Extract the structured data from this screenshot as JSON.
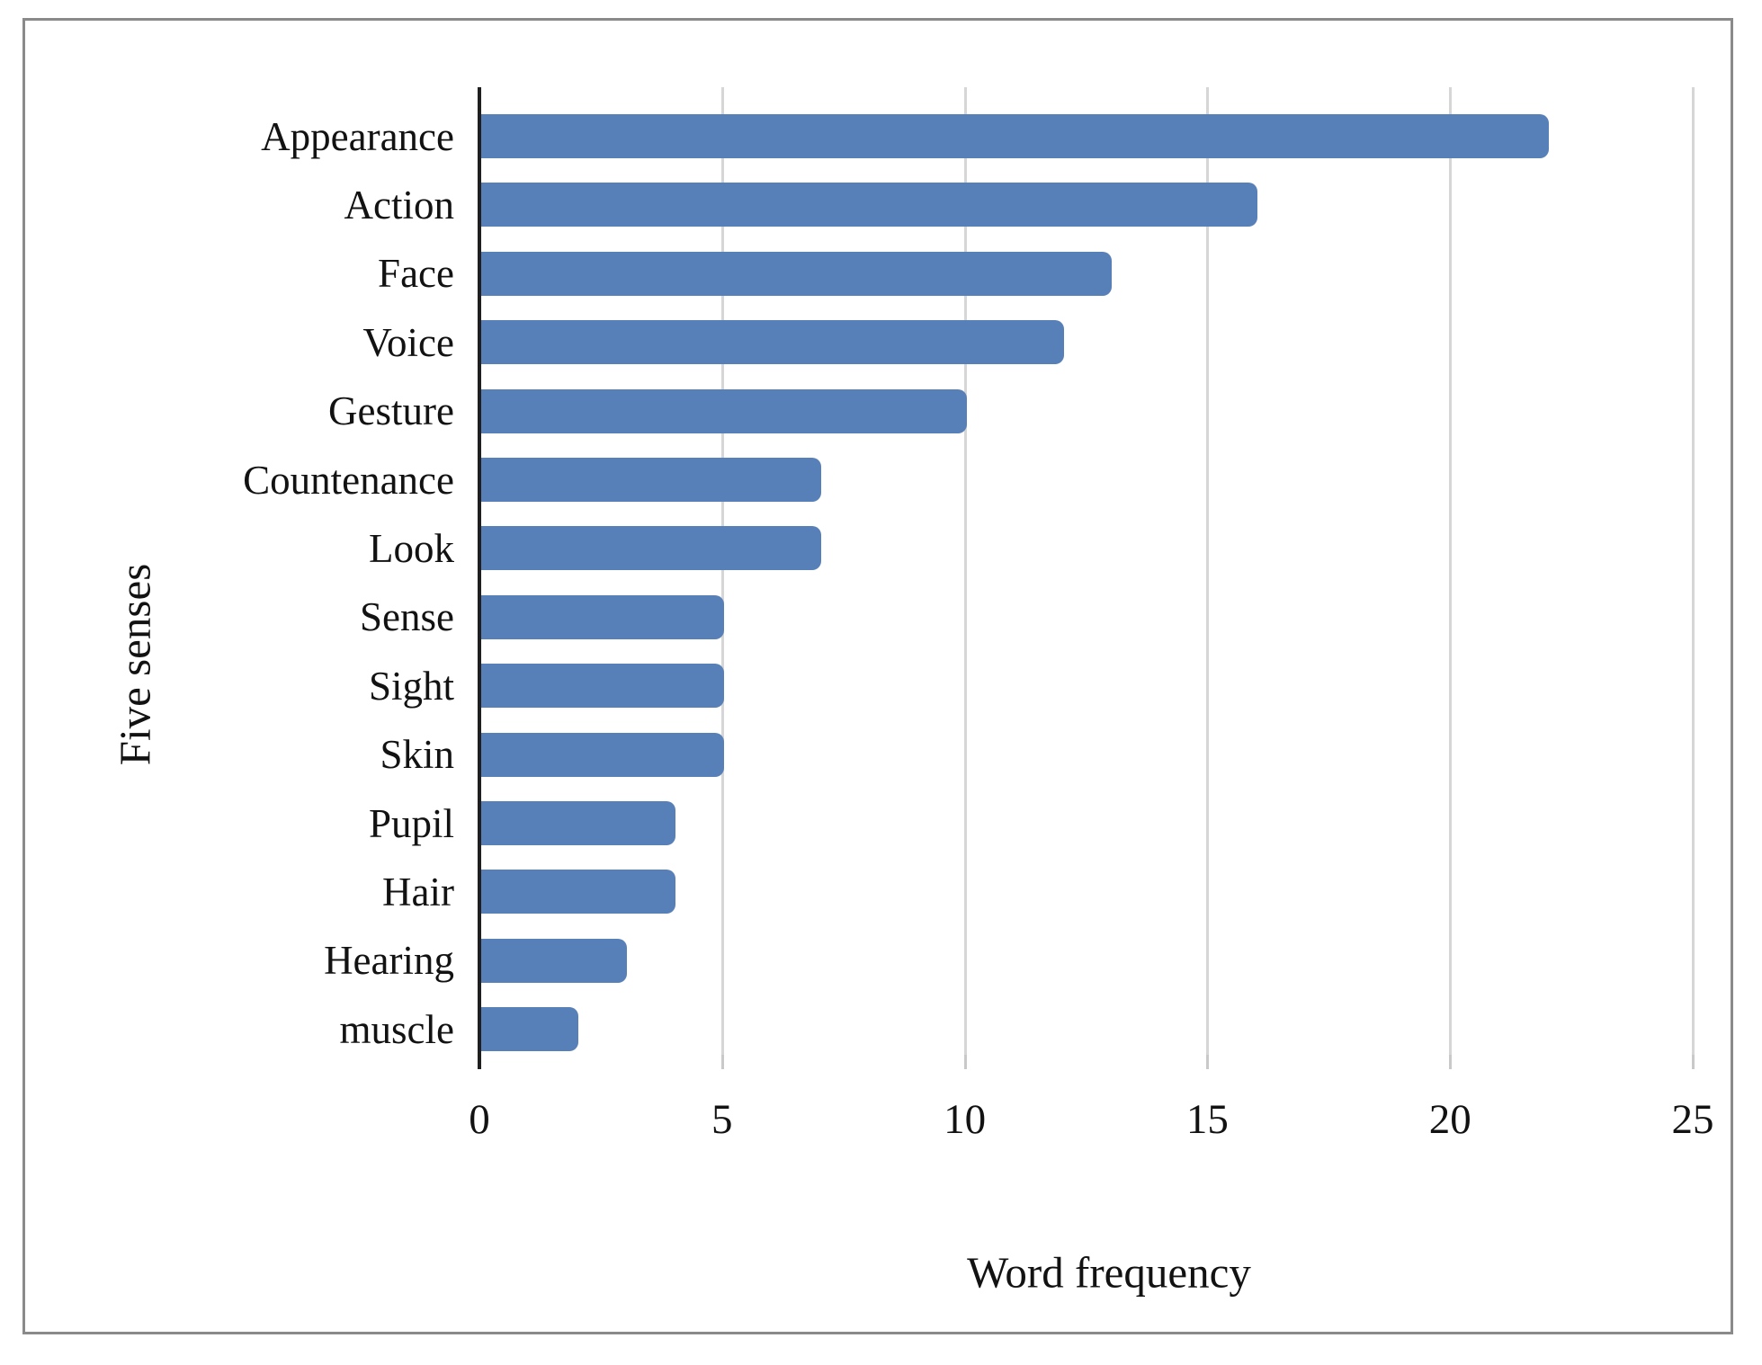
{
  "figure": {
    "background": "#ffffff",
    "border_color": "#8a8a8a"
  },
  "chart_data": {
    "type": "bar",
    "orientation": "horizontal",
    "title": "",
    "xlabel": "Word frequency",
    "ylabel": "Five senses",
    "categories": [
      "Appearance",
      "Action",
      "Face",
      "Voice",
      "Gesture",
      "Countenance",
      "Look",
      "Sense",
      "Sight",
      "Skin",
      "Pupil",
      "Hair",
      "Hearing",
      "muscle"
    ],
    "values": [
      22,
      16,
      13,
      12,
      10,
      7,
      7,
      5,
      5,
      5,
      4,
      4,
      3,
      2
    ],
    "xlim": [
      0,
      25
    ],
    "xticks": [
      0,
      5,
      10,
      15,
      20,
      25
    ],
    "grid": "vertical-only",
    "legend_position": "none",
    "bar_color": "#5880b8",
    "gridline_color": "#d6d6d6",
    "axis_color": "#1f1f1f",
    "text_color": "#121212"
  }
}
